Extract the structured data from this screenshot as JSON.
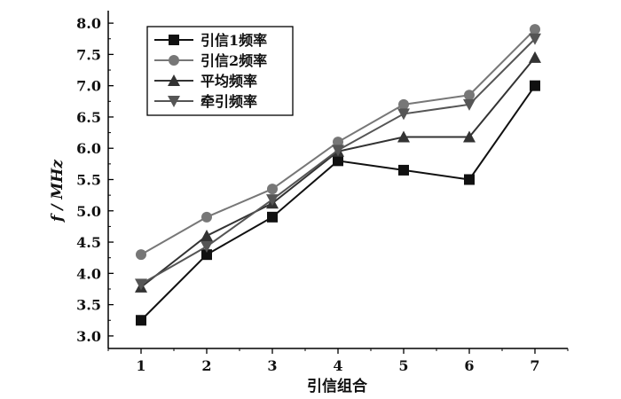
{
  "chart_data": {
    "type": "line",
    "title": "",
    "xlabel": "引信组合",
    "ylabel": "f / MHz",
    "x": [
      1,
      2,
      3,
      4,
      5,
      6,
      7
    ],
    "xlim": [
      0.5,
      7.5
    ],
    "ylim": [
      2.8,
      8.2
    ],
    "xticks": [
      "1",
      "2",
      "3",
      "4",
      "5",
      "6",
      "7"
    ],
    "yticks": [
      "3.0",
      "3.5",
      "4.0",
      "4.5",
      "5.0",
      "5.5",
      "6.0",
      "6.5",
      "7.0",
      "7.5",
      "8.0"
    ],
    "grid": false,
    "legend_position": "top-left",
    "series": [
      {
        "name": "引信1频率",
        "marker": "square",
        "color": "#111111",
        "values": [
          3.25,
          4.3,
          4.9,
          5.8,
          5.65,
          5.5,
          7.0
        ]
      },
      {
        "name": "引信2频率",
        "marker": "circle",
        "color": "#777777",
        "values": [
          4.3,
          4.9,
          5.35,
          6.1,
          6.7,
          6.85,
          7.9
        ]
      },
      {
        "name": "平均频率",
        "marker": "triangle-up",
        "color": "#333333",
        "values": [
          3.78,
          4.6,
          5.12,
          5.95,
          6.18,
          6.18,
          7.45
        ]
      },
      {
        "name": "牵引频率",
        "marker": "triangle-down",
        "color": "#555555",
        "values": [
          3.83,
          4.43,
          5.18,
          5.97,
          6.55,
          6.7,
          7.75
        ]
      }
    ]
  }
}
